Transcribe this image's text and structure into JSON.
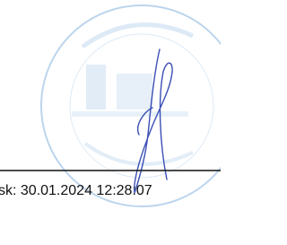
{
  "footer": {
    "timestamp": "sk: 30.01.2024 12:28:07"
  }
}
